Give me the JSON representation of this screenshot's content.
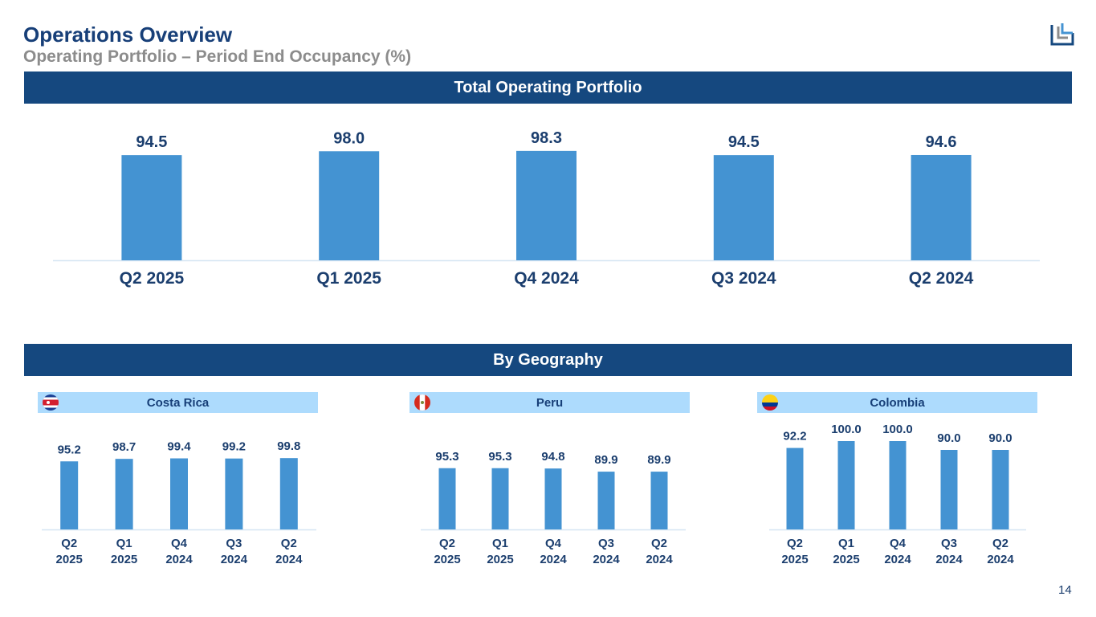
{
  "header": {
    "title": "Operations Overview",
    "subtitle": "Operating Portfolio – Period End Occupancy (%)"
  },
  "logo": {
    "icon": "company-logo-icon"
  },
  "sections": {
    "total": "Total Operating Portfolio",
    "geography": "By Geography"
  },
  "page_number": "14",
  "colors": {
    "bar": "#4493d2",
    "band": "#15487f",
    "geo_head": "#addbfd",
    "text": "#1b3e6e"
  },
  "chart_data": [
    {
      "type": "bar",
      "title": "Total Operating Portfolio",
      "categories": [
        "Q2 2025",
        "Q1 2025",
        "Q4 2024",
        "Q3 2024",
        "Q2 2024"
      ],
      "values": [
        94.5,
        98.0,
        98.3,
        94.5,
        94.6
      ],
      "labels": [
        "94.5",
        "98.0",
        "98.3",
        "94.5",
        "94.6"
      ],
      "xlabel": "",
      "ylabel": "Period End Occupancy (%)",
      "ylim": [
        0,
        100
      ],
      "grid": false
    },
    {
      "type": "bar",
      "title": "Costa Rica",
      "flag": "costa-rica-flag-icon",
      "categories": [
        "Q2 2025",
        "Q1 2025",
        "Q4 2024",
        "Q3 2024",
        "Q2 2024"
      ],
      "values": [
        95.2,
        98.7,
        99.4,
        99.2,
        99.8
      ],
      "labels": [
        "95.2",
        "98.7",
        "99.4",
        "99.2",
        "99.8"
      ],
      "ylim": [
        0,
        100
      ],
      "grid": false
    },
    {
      "type": "bar",
      "title": "Peru",
      "flag": "peru-flag-icon",
      "categories": [
        "Q2 2025",
        "Q1 2025",
        "Q4 2024",
        "Q3 2024",
        "Q2 2024"
      ],
      "values": [
        95.3,
        95.3,
        94.8,
        89.9,
        89.9
      ],
      "labels": [
        "95.3",
        "95.3",
        "94.8",
        "89.9",
        "89.9"
      ],
      "ylim": [
        0,
        100
      ],
      "grid": false
    },
    {
      "type": "bar",
      "title": "Colombia",
      "flag": "colombia-flag-icon",
      "categories": [
        "Q2 2025",
        "Q1 2025",
        "Q4 2024",
        "Q3 2024",
        "Q2 2024"
      ],
      "values": [
        92.2,
        100.0,
        100.0,
        90.0,
        90.0
      ],
      "labels": [
        "92.2",
        "100.0",
        "100.0",
        "90.0",
        "90.0"
      ],
      "ylim": [
        0,
        100
      ],
      "grid": false
    }
  ]
}
